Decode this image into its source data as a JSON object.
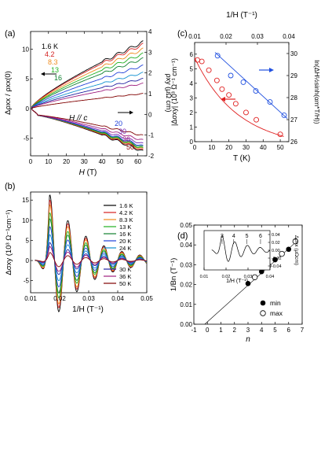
{
  "chart_data": [
    {
      "panel_label": "(a)",
      "type": "line",
      "xlabel_main": "H",
      "xlabel_unit": " (T)",
      "ylabel_left": "Δρxx / ρxx(0)",
      "ylabel_right": "ρxy  (μΩ cm)",
      "xlim": [
        0,
        65
      ],
      "ylim_left": [
        -8,
        13
      ],
      "ylim_right": [
        -2,
        4
      ],
      "xticks": [
        0,
        10,
        20,
        30,
        40,
        50,
        60
      ],
      "yticks_left": [
        -5,
        0,
        5,
        10
      ],
      "yticks_right": [
        -2,
        -1,
        0,
        1,
        2,
        3,
        4
      ],
      "annotation": "H // c",
      "temperature_labels_top": [
        {
          "text": "1.6 K",
          "color": "#000000"
        },
        {
          "text": "4.2",
          "color": "#d42020"
        },
        {
          "text": "8.3",
          "color": "#f08c1e"
        },
        {
          "text": "13",
          "color": "#20b020"
        },
        {
          "text": "16",
          "color": "#108030"
        }
      ],
      "temperature_labels_bottom": [
        {
          "text": "20",
          "color": "#2040d8"
        },
        {
          "text": "30",
          "color": "#7020b0"
        },
        {
          "text": "36",
          "color": "#a02080"
        },
        {
          "text": "50",
          "color": "#800000"
        }
      ],
      "series_upper": [
        {
          "T": "1.6 K",
          "color": "#000000",
          "end": 11.2
        },
        {
          "T": "4.2 K",
          "color": "#d42020",
          "end": 10.8
        },
        {
          "T": "8.3 K",
          "color": "#f08c1e",
          "end": 10.0
        },
        {
          "T": "13 K",
          "color": "#20b020",
          "end": 9.2
        },
        {
          "T": "16 K",
          "color": "#108030",
          "end": 8.4
        },
        {
          "T": "20 K",
          "color": "#2040d8",
          "end": 7.2
        },
        {
          "T": "24 K",
          "color": "#1090d0",
          "end": 6.0
        },
        {
          "T": "30 K",
          "color": "#2020a0",
          "end": 5.0
        },
        {
          "T": "36 K",
          "color": "#a02080",
          "end": 4.2
        },
        {
          "T": "50 K",
          "color": "#800000",
          "end": 2.5
        }
      ],
      "series_lower": [
        {
          "T": "1.6 K",
          "color": "#000000",
          "end": -7.3
        },
        {
          "T": "4.2 K",
          "color": "#d42020",
          "end": -7.1
        },
        {
          "T": "8.3 K",
          "color": "#f08c1e",
          "end": -6.9
        },
        {
          "T": "13 K",
          "color": "#20b020",
          "end": -6.8
        },
        {
          "T": "16 K",
          "color": "#108030",
          "end": -6.6
        },
        {
          "T": "20 K",
          "color": "#2040d8",
          "end": -6.4
        },
        {
          "T": "30 K",
          "color": "#7020b0",
          "end": -6.0
        },
        {
          "T": "36 K",
          "color": "#a02080",
          "end": -5.4
        },
        {
          "T": "50 K",
          "color": "#800000",
          "end": -4.6
        }
      ]
    },
    {
      "panel_label": "(b)",
      "type": "line",
      "xlabel": "1/H (T⁻¹)",
      "ylabel": "Δσxy  (10³ Ω⁻¹cm⁻¹)",
      "xlim": [
        0.01,
        0.05
      ],
      "ylim": [
        -8,
        17
      ],
      "xticks": [
        0.01,
        0.02,
        0.03,
        0.04,
        0.05
      ],
      "yticks": [
        -5,
        0,
        5,
        10,
        15
      ],
      "legend": [
        {
          "name": "1.6 K",
          "color": "#000000"
        },
        {
          "name": "4.2 K",
          "color": "#d42020"
        },
        {
          "name": "8.3 K",
          "color": "#f08c1e"
        },
        {
          "name": "13 K",
          "color": "#20b020"
        },
        {
          "name": "16 K",
          "color": "#108030"
        },
        {
          "name": "20 K",
          "color": "#2040d8"
        },
        {
          "name": "24 K",
          "color": "#1090d0"
        },
        {
          "name": "30 K",
          "color": "#2020a0"
        },
        {
          "name": "36 K",
          "color": "#a02080"
        },
        {
          "name": "50 K",
          "color": "#800000"
        }
      ],
      "amplitudes": [
        16.5,
        15.2,
        14.0,
        12.0,
        10.5,
        8.5,
        6.5,
        4.5,
        3.5,
        2.0
      ]
    },
    {
      "panel_label": "(c)",
      "type": "scatter",
      "xlabel": "T (K)",
      "top_xlabel": "1/H (T⁻¹)",
      "ylabel_left": "|Δσxy| (10³ Ω⁻¹ cm⁻¹)",
      "ylabel_right": "ln(ΔH½sinh(αm*T/H))",
      "xlim": [
        0,
        55
      ],
      "ylim_left": [
        0,
        6.8
      ],
      "top_xlim": [
        0.01,
        0.04
      ],
      "ylim_right": [
        26,
        30.5
      ],
      "xticks": [
        0,
        10,
        20,
        30,
        40,
        50
      ],
      "yticks_left": [
        0,
        1,
        2,
        3,
        4,
        5,
        6
      ],
      "top_xticks": [
        0.01,
        0.02,
        0.03,
        0.04
      ],
      "yticks_right": [
        26,
        27,
        28,
        29,
        30
      ],
      "red_points": {
        "T": [
          1.6,
          4.2,
          8.3,
          13,
          16,
          20,
          24,
          30,
          36,
          50
        ],
        "values": [
          5.6,
          5.5,
          4.9,
          4.2,
          3.6,
          3.2,
          2.6,
          2.0,
          1.5,
          0.5
        ]
      },
      "blue_points": {
        "invH": [
          0.0173,
          0.0215,
          0.0255,
          0.0295,
          0.034,
          0.0385
        ],
        "values": [
          29.9,
          29.0,
          28.7,
          28.3,
          27.8,
          27.2
        ]
      }
    },
    {
      "panel_label": "(d)",
      "type": "scatter",
      "xlabel": "n",
      "ylabel": "1/Bn (T⁻¹)",
      "xlim": [
        -1,
        7
      ],
      "ylim": [
        0,
        0.05
      ],
      "xticks": [
        -1,
        0,
        1,
        2,
        3,
        4,
        5,
        6,
        7
      ],
      "yticks": [
        0.0,
        0.01,
        0.02,
        0.03,
        0.04,
        0.05
      ],
      "series": [
        {
          "name": "min",
          "n": [
            3,
            4,
            5,
            6
          ],
          "values": [
            0.0205,
            0.0265,
            0.0325,
            0.0378
          ]
        },
        {
          "name": "max",
          "n": [
            3.5,
            4.5,
            5.5,
            6.5
          ],
          "values": [
            0.0237,
            0.0295,
            0.0355,
            0.0418
          ]
        }
      ],
      "fit_slope": 0.00615,
      "fit_intercept": 0.0012,
      "inset": {
        "xlabel": "1/H (T⁻¹)",
        "ylabel": "Δρxx (μΩcm)",
        "xlim": [
          0.01,
          0.04
        ],
        "ylim": [
          -0.05,
          0.05
        ],
        "xticks": [
          0.01,
          0.02,
          0.03,
          0.04
        ],
        "yticks": [
          -0.04,
          -0.02,
          0.0,
          0.02,
          0.04
        ],
        "peak_labels": [
          "3",
          "4",
          "5",
          "6"
        ],
        "peak_positions": [
          0.0182,
          0.0235,
          0.0295,
          0.0357
        ]
      }
    }
  ]
}
